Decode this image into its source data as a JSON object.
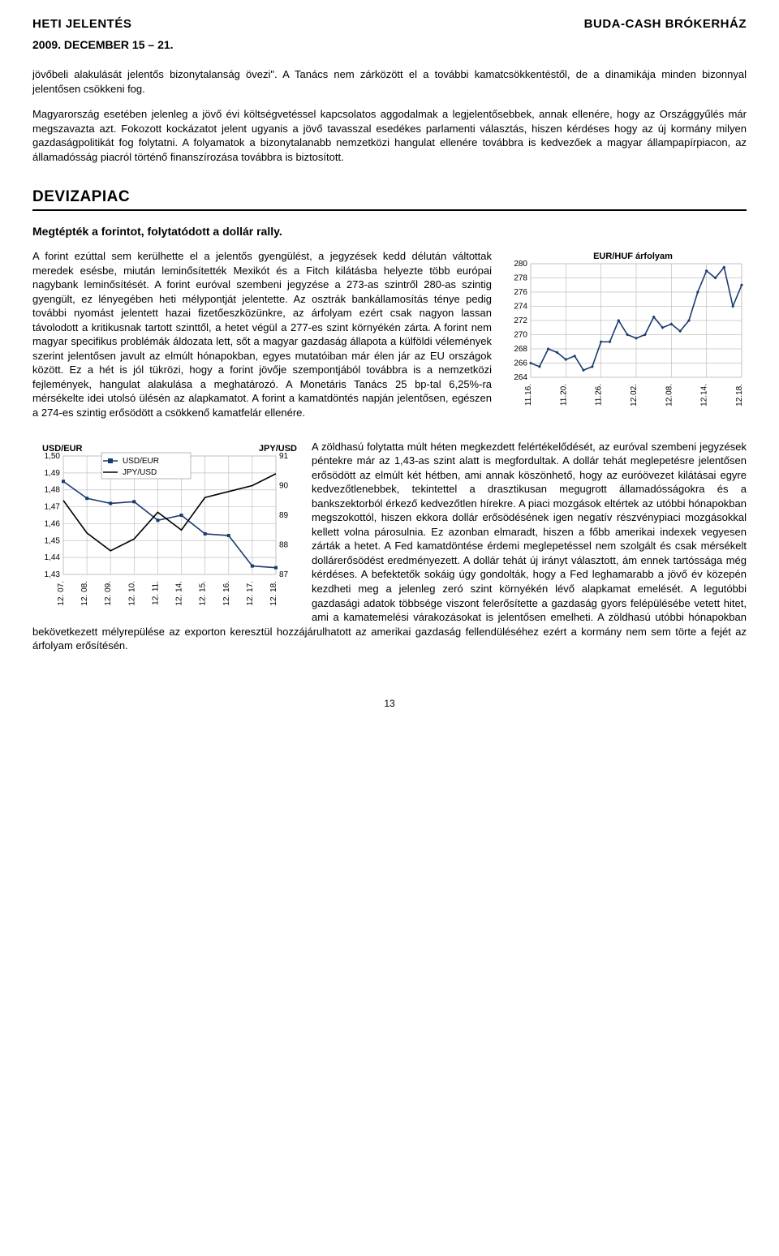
{
  "header": {
    "left": "HETI JELENTÉS",
    "right": "BUDA-CASH BRÓKERHÁZ"
  },
  "date_line": "2009. DECEMBER 15 – 21.",
  "intro_paragraphs": [
    "jövőbeli alakulását jelentős bizonytalanság övezi\". A Tanács nem zárközött el a további kamatcsökkentéstől, de a dinamikája minden bizonnyal jelentősen csökkeni fog.",
    "Magyarország esetében jelenleg a jövő évi költségvetéssel kapcsolatos aggodalmak a legjelentősebbek, annak ellenére, hogy az Országgyűlés már megszavazta azt. Fokozott kockázatot jelent ugyanis a jövő tavasszal esedékes parlamenti választás, hiszen kérdéses hogy az új kormány milyen gazdaságpolitikát fog folytatni. A folyamatok a bizonytalanabb nemzetközi hangulat ellenére továbbra is kedvezőek a magyar állampapírpiacon, az államadósság piacról történő finanszírozása továbbra is biztosított."
  ],
  "section_title": "DEVIZAPIAC",
  "subheading": "Megtépték a forintot, folytatódott a dollár rally.",
  "block1_text": "A forint ezúttal sem kerülhette el a jelentős gyengülést, a jegyzések kedd délután váltottak meredek esésbe, miután leminősítették Mexikót és a Fitch kilátásba helyezte több európai nagybank leminősítését. A forint euróval szembeni jegyzése a 273-as szintről 280-as szintig gyengült, ez lényegében heti mélypontját jelentette. Az osztrák bankállamosítás ténye pedig további nyomást jelentett hazai fizetőeszközünkre, az árfolyam ezért csak nagyon lassan távolodott a kritikusnak tartott szinttől, a hetet végül a 277-es szint környékén zárta. A forint nem magyar specifikus problémák áldozata lett, sőt a magyar gazdaság állapota a külföldi vélemények szerint jelentősen javult az elmúlt hónapokban, egyes mutatóiban már élen jár az EU országok között. Ez a hét is jól tükrözi, hogy a forint jövője szempontjából továbbra is a nemzetközi fejlemények, hangulat alakulása a meghatározó. A Monetáris Tanács 25 bp-tal 6,25%-ra mérsékelte idei utolsó ülésén az alapkamatot. A forint a kamatdöntés napján jelentősen, egészen a 274-es szintig erősödött a csökkenő kamatfelár ellenére.",
  "block2_text": "A zöldhasú folytatta múlt héten megkezdett felértékelődését, az euróval szembeni jegyzések péntekre már az 1,43-as szint alatt is megfordultak. A dollár tehát meglepetésre jelentősen erősödött az elmúlt két hétben, ami annak köszönhető, hogy az euróövezet kilátásai egyre kedvezőtlenebbek, tekintettel a drasztikusan megugrott államadósságokra és a bankszektorból érkező kedvezőtlen hírekre. A piaci mozgások eltértek az utóbbi hónapokban megszokottól, hiszen ekkora dollár erősödésének igen negatív részvénypiaci mozgásokkal kellett volna párosulnia. Ez azonban elmaradt, hiszen a főbb amerikai indexek vegyesen zárták a hetet. A Fed kamatdöntése érdemi meglepetéssel nem szolgált és csak mérsékelt dollárerősödést eredményezett. A dollár tehát új irányt választott, ám ennek tartóssága még kérdéses. A befektetők sokáig úgy gondolták, hogy a Fed leghamarabb a jövő év közepén kezdheti meg a jelenleg zeró szint környékén lévő alapkamat emelését. A legutóbbi gazdasági adatok többsége viszont felerősítette a gazdaság gyors felépülésébe vetett hitet, ami a kamatemelési várakozásokat is jelentősen emelheti. A zöldhasú utóbbi hónapokban bekövetkezett mélyrepülése az exporton keresztül hozzájárulhatott az amerikai gazdaság fellendüléséhez ezért a kormány nem sem törte a fejét az árfolyam erősítésén.",
  "chart1": {
    "type": "line",
    "title": "EUR/HUF árfolyam",
    "title_fontsize": 11,
    "background_color": "#ffffff",
    "grid_color": "#c0c0c0",
    "line_color": "#1a3a6e",
    "marker": "diamond",
    "marker_size": 4,
    "ylim": [
      264,
      280
    ],
    "ytick_step": 2,
    "yticks": [
      264,
      266,
      268,
      270,
      272,
      274,
      276,
      278,
      280
    ],
    "x_labels": [
      "11.16.",
      "11.20.",
      "11.26.",
      "12.02.",
      "12.08.",
      "12.14.",
      "12.18."
    ],
    "series": [
      266,
      265.5,
      268,
      267.5,
      266.5,
      267,
      265,
      265.5,
      269,
      269,
      272,
      270,
      269.5,
      270,
      272.5,
      271,
      271.5,
      270.5,
      272,
      276,
      279,
      278,
      279.5,
      274,
      277
    ],
    "label_fontsize": 10
  },
  "chart2": {
    "type": "line",
    "title_left": "USD/EUR",
    "title_right": "JPY/USD",
    "legend": [
      "USD/EUR",
      "JPY/USD"
    ],
    "background_color": "#ffffff",
    "grid_color": "#c0c0c0",
    "colors": {
      "usdeur": "#1a3a6e",
      "jpyusd": "#000000"
    },
    "markers": {
      "usdeur": "square",
      "jpyusd": "none"
    },
    "marker_size": 4,
    "left_ylim": [
      1.43,
      1.5
    ],
    "left_ytick_step": 0.01,
    "left_yticks": [
      "1,43",
      "1,44",
      "1,45",
      "1,46",
      "1,47",
      "1,48",
      "1,49",
      "1,50"
    ],
    "right_ylim": [
      87,
      91
    ],
    "right_ytick_step": 1,
    "right_yticks": [
      87,
      88,
      89,
      90,
      91
    ],
    "x_labels": [
      "12. 07.",
      "12. 08.",
      "12. 09.",
      "12. 10.",
      "12. 11.",
      "12. 14.",
      "12. 15.",
      "12. 16.",
      "12. 17.",
      "12. 18."
    ],
    "usdeur_series": [
      1.485,
      1.475,
      1.472,
      1.473,
      1.462,
      1.465,
      1.454,
      1.453,
      1.435,
      1.434
    ],
    "jpyusd_series": [
      89.5,
      88.4,
      87.8,
      88.2,
      89.1,
      88.5,
      89.6,
      89.8,
      90.0,
      90.4
    ],
    "label_fontsize": 10
  },
  "page_number": "13"
}
